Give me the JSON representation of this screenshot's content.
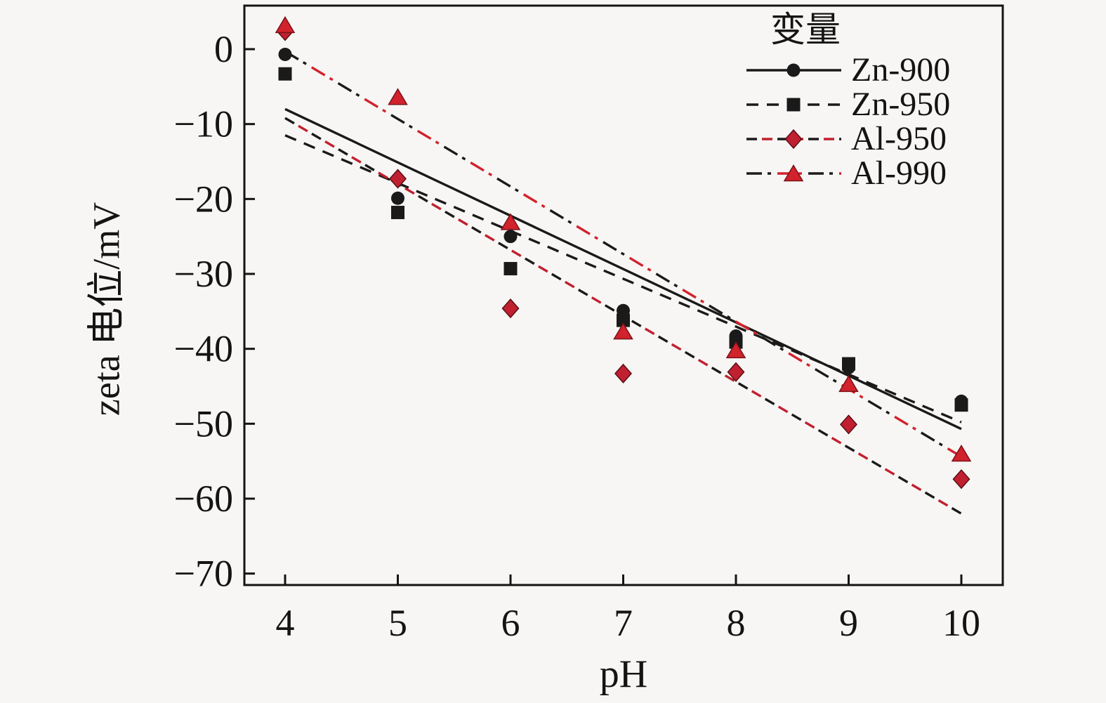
{
  "chart_data": {
    "type": "scatter",
    "title": "",
    "xlabel": "pH",
    "ylabel": "zeta 电位/mV",
    "legend_title": "变量",
    "legend_position": "top-right",
    "grid": false,
    "background": "#f7f6f4",
    "axis_color": "#141414",
    "x": [
      4,
      5,
      6,
      7,
      8,
      9,
      10
    ],
    "xlim": [
      3.64,
      10.37
    ],
    "ylim": [
      -71.5,
      5.8
    ],
    "x_tick_labels": [
      "4",
      "5",
      "6",
      "7",
      "8",
      "9",
      "10"
    ],
    "y_ticks": [
      0,
      -10,
      -20,
      -30,
      -40,
      -50,
      -60,
      -70
    ],
    "y_tick_labels": [
      "0",
      "−10",
      "−20",
      "−30",
      "−40",
      "−50",
      "−60",
      "−70"
    ],
    "series": [
      {
        "name": "Zn-900",
        "marker": "circle",
        "color": "#1a1a1a",
        "line_style": "solid",
        "values": [
          -0.7,
          -19.9,
          -25.0,
          -34.9,
          -38.3,
          -42.5,
          -47.0
        ],
        "trend_line": {
          "x": [
            4,
            10
          ],
          "y": [
            -8.0,
            -50.7
          ]
        }
      },
      {
        "name": "Zn-950",
        "marker": "square",
        "color": "#1a1a1a",
        "line_style": "dashed",
        "values": [
          -3.3,
          -21.8,
          -29.3,
          -36.2,
          -39.1,
          -42.0,
          -47.5
        ],
        "trend_line": {
          "x": [
            4,
            10
          ],
          "y": [
            -11.5,
            -49.8
          ]
        }
      },
      {
        "name": "Al-950",
        "marker": "diamond",
        "color": "#c0202f",
        "line_style": "dashed-two-tone",
        "values": [
          2.4,
          -17.3,
          -34.6,
          -43.3,
          -43.1,
          -50.1,
          -57.4
        ],
        "trend_line": {
          "x": [
            4,
            10
          ],
          "y": [
            -9.2,
            -62.0
          ]
        }
      },
      {
        "name": "Al-990",
        "marker": "triangle",
        "color": "#d2222c",
        "line_style": "dashdot-two-tone",
        "values": [
          3.2,
          -6.4,
          -23.1,
          -37.7,
          -40.2,
          -44.7,
          -54.0
        ],
        "trend_line": {
          "x": [
            4,
            10
          ],
          "y": [
            -0.3,
            -54.4
          ]
        }
      }
    ]
  }
}
